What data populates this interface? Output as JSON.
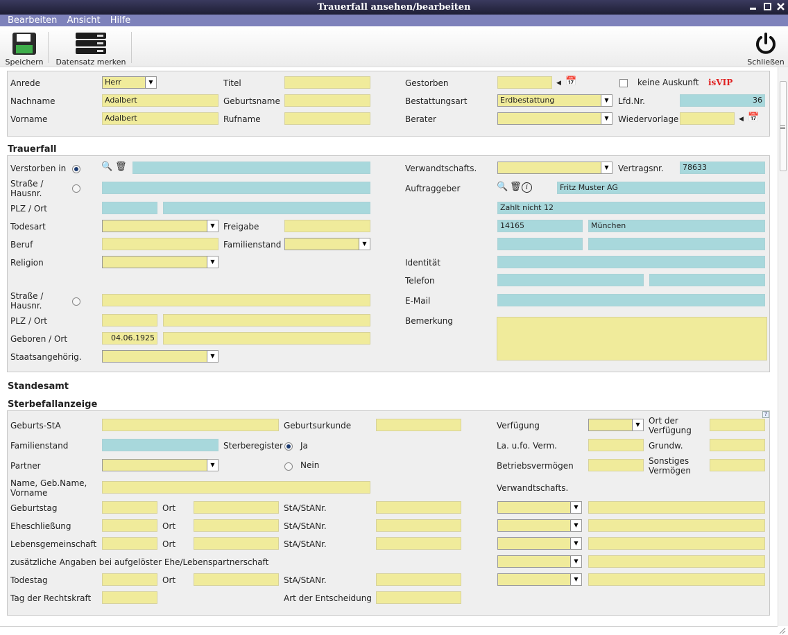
{
  "window": {
    "title": "Trauerfall ansehen/bearbeiten"
  },
  "menu": {
    "edit": "Bearbeiten",
    "view": "Ansicht",
    "help": "Hilfe"
  },
  "toolbar": {
    "save": "Speichern",
    "bookmark": "Datensatz merken",
    "close": "Schließen"
  },
  "person": {
    "anrede_label": "Anrede",
    "anrede_value": "Herr",
    "nachname_label": "Nachname",
    "nachname_value": "Adalbert",
    "vorname_label": "Vorname",
    "vorname_value": "Adalbert",
    "titel_label": "Titel",
    "geburtsname_label": "Geburtsname",
    "rufname_label": "Rufname",
    "gestorben_label": "Gestorben",
    "keine_auskunft_label": "keine Auskunft",
    "isvip_label": "isVIP",
    "bestattungsart_label": "Bestattungsart",
    "bestattungsart_value": "Erdbestattung",
    "lfdnr_label": "Lfd.Nr.",
    "lfdnr_value": "36",
    "berater_label": "Berater",
    "wiedervorlage_label": "Wiedervorlage"
  },
  "trauerfall": {
    "header": "Trauerfall",
    "verstorben_in": "Verstorben in",
    "strasse": "Straße / Hausnr.",
    "plz_ort": "PLZ / Ort",
    "todesart": "Todesart",
    "freigabe": "Freigabe",
    "beruf": "Beruf",
    "familienstand": "Familienstand",
    "religion": "Religion",
    "strasse2": "Straße / Hausnr.",
    "plz_ort2": "PLZ / Ort",
    "geboren_ort": "Geboren / Ort",
    "geboren_value": "04.06.1925",
    "staatsangehoerig": "Staatsangehörig.",
    "verwandtschafts": "Verwandtschafts.",
    "vertragsnr": "Vertragsnr.",
    "vertragsnr_value": "78633",
    "auftraggeber": "Auftraggeber",
    "auftraggeber_value": "Fritz Muster AG",
    "zahlt_value": "Zahlt nicht 12",
    "plz_value": "14165",
    "ort_value": "München",
    "identitaet": "Identität",
    "telefon": "Telefon",
    "email": "E-Mail",
    "bemerkung": "Bemerkung"
  },
  "standesamt": {
    "header": "Standesamt"
  },
  "sterbefall": {
    "header": "Sterbefallanzeige",
    "geburts_sta": "Geburts-StA",
    "geburtsurkunde": "Geburtsurkunde",
    "verfuegung": "Verfügung",
    "ort_der_verfuegung": "Ort der Verfügung",
    "familienstand": "Familienstand",
    "sterberegister": "Sterberegister",
    "ja": "Ja",
    "nein": "Nein",
    "la_ufo": "La. u.fo. Verm.",
    "grundw": "Grundw.",
    "partner": "Partner",
    "betriebsvermoegen": "Betriebsvermögen",
    "sonstiges": "Sonstiges Vermögen",
    "name_geb": "Name, Geb.Name, Vorname",
    "verwandtschafts": "Verwandtschafts.",
    "geburtstag": "Geburtstag",
    "ort": "Ort",
    "sta": "StA/StANr.",
    "eheschliessung": "Eheschließung",
    "lebensgemeinschaft": "Lebensgemeinschaft",
    "zusaetzlich": "zusätzliche Angaben bei aufgelöster Ehe/Lebenspartnerschaft",
    "todestag": "Todestag",
    "rechtskraft": "Tag der Rechtskraft",
    "entscheidung": "Art der Entscheidung",
    "help": "?"
  },
  "colors": {
    "title_bar": "#2b2b47",
    "menu_bar": "#7e82bb",
    "field_yellow": "#f0eb9b",
    "field_blue": "#a8d8dc",
    "vip_red": "#e02020"
  }
}
